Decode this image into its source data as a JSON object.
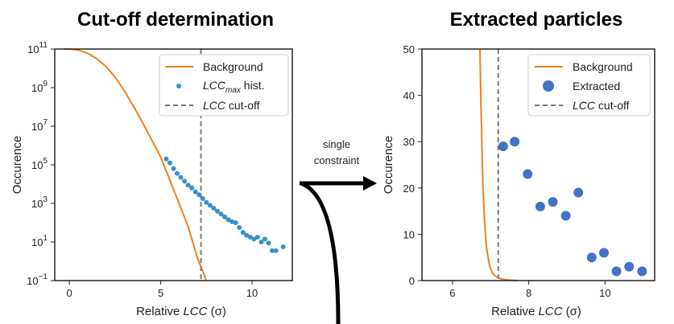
{
  "chart_data": [
    {
      "type": "scatter",
      "title": "Cut-off determination",
      "xlabel": {
        "prefix": "Relative ",
        "italic": "LCC",
        "suffix": " (σ)"
      },
      "ylabel": "Occurence",
      "yscale": "log",
      "xlim": [
        -0.8,
        12.2
      ],
      "ylim_exp": [
        -1,
        11
      ],
      "xticks": [
        0,
        5,
        10
      ],
      "yticks_exp": [
        -1,
        1,
        3,
        5,
        7,
        9,
        11
      ],
      "ytick_base": "10",
      "cutoff_x": 7.2,
      "legend_position": "top-right",
      "legend": [
        {
          "italic": "",
          "sub": "",
          "text": "Background"
        },
        {
          "italic": "LCC",
          "sub": "max",
          "text": " hist."
        },
        {
          "italic": "LCC",
          "sub": "",
          "text": " cut-off"
        }
      ],
      "series": [
        {
          "name": "Background",
          "kind": "line",
          "color": "#f07f1c",
          "x": [
            -0.3,
            0,
            0.5,
            1,
            1.5,
            2,
            2.5,
            3,
            3.5,
            4,
            4.5,
            5,
            5.5,
            6,
            6.5,
            7,
            7.5
          ],
          "y_exp": [
            11,
            11,
            10.95,
            10.78,
            10.5,
            10.1,
            9.55,
            8.85,
            8.05,
            7.2,
            6.3,
            5.4,
            4.2,
            3.0,
            1.8,
            0.2,
            -1.0
          ]
        },
        {
          "name": "LCC max hist.",
          "kind": "points",
          "color": "#3a8fc8",
          "x": [
            5.3,
            5.5,
            5.7,
            5.9,
            6.1,
            6.3,
            6.5,
            6.7,
            6.9,
            7.1,
            7.3,
            7.5,
            7.7,
            7.9,
            8.1,
            8.3,
            8.5,
            8.7,
            8.9,
            9.1,
            9.3,
            9.5,
            9.7,
            9.9,
            10.1,
            10.3,
            10.5,
            10.7,
            10.9,
            11.1,
            11.3,
            11.7
          ],
          "y_exp": [
            5.3,
            5.1,
            4.8,
            4.55,
            4.35,
            4.15,
            3.95,
            3.8,
            3.6,
            3.45,
            3.25,
            3.05,
            2.9,
            2.75,
            2.6,
            2.45,
            2.3,
            2.15,
            2.05,
            2.0,
            1.75,
            1.5,
            1.35,
            1.25,
            1.15,
            1.25,
            1.0,
            1.15,
            0.95,
            0.55,
            0.55,
            0.75
          ]
        }
      ]
    },
    {
      "type": "scatter",
      "title": "Extracted particles",
      "xlabel": {
        "prefix": "Relative ",
        "italic": "LCC",
        "suffix": " (σ)"
      },
      "ylabel": "Occurence",
      "xlim": [
        5.2,
        11.3
      ],
      "ylim": [
        0,
        50
      ],
      "xticks": [
        6,
        8,
        10
      ],
      "yticks": [
        0,
        10,
        20,
        30,
        40,
        50
      ],
      "cutoff_x": 7.2,
      "legend_position": "top-right",
      "legend": [
        {
          "italic": "",
          "text": "Background"
        },
        {
          "italic": "",
          "text": "Extracted"
        },
        {
          "italic": "LCC",
          "text": " cut-off"
        }
      ],
      "series": [
        {
          "name": "Background",
          "kind": "line",
          "color": "#f07f1c",
          "x": [
            6.72,
            6.74,
            6.77,
            6.8,
            6.84,
            6.88,
            6.93,
            6.98,
            7.05,
            7.15,
            7.3,
            7.5,
            7.7
          ],
          "y": [
            50,
            40,
            30,
            20,
            13,
            8,
            5,
            3,
            1.6,
            0.8,
            0.3,
            0.1,
            0
          ]
        },
        {
          "name": "Extracted",
          "kind": "points",
          "color": "#4472c4",
          "x": [
            7.33,
            7.63,
            7.97,
            8.3,
            8.63,
            8.97,
            9.3,
            9.65,
            9.97,
            10.3,
            10.63,
            10.97
          ],
          "y": [
            29,
            30,
            23,
            16,
            17,
            14,
            19,
            5,
            6,
            2,
            3,
            2
          ]
        }
      ]
    }
  ],
  "annotation": {
    "lines": [
      "single",
      "constraint"
    ]
  }
}
